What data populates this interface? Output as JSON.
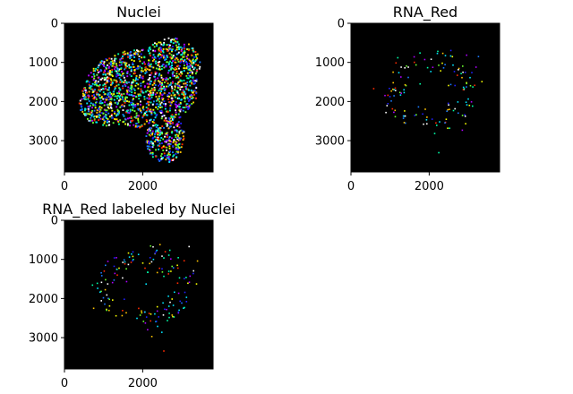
{
  "chart_data": [
    {
      "type": "image",
      "title": "Nuclei",
      "xlabel": "",
      "ylabel": "",
      "xlim": [
        0,
        3800
      ],
      "ylim": [
        3800,
        0
      ],
      "xticks": [
        0,
        2000
      ],
      "yticks": [
        0,
        1000,
        2000,
        3000
      ],
      "xtick_labels": [
        "0",
        "2000"
      ],
      "ytick_labels": [
        "0",
        "1000",
        "2000",
        "3000"
      ],
      "background": "#000000",
      "content": "dense multicolor labeled nuclei forming a tissue section",
      "density": 0.78,
      "colormap": [
        "#ff2a00",
        "#ffc400",
        "#f7ff00",
        "#6bff2e",
        "#00ffa8",
        "#00e5ff",
        "#1a7bff",
        "#2020ff",
        "#b000ff",
        "#ffffff"
      ]
    },
    {
      "type": "image",
      "title": "RNA_Red",
      "xlabel": "",
      "ylabel": "",
      "xlim": [
        0,
        3800
      ],
      "ylim": [
        3800,
        0
      ],
      "xticks": [
        0,
        2000
      ],
      "yticks": [
        0,
        1000,
        2000,
        3000
      ],
      "xtick_labels": [
        "0",
        "2000"
      ],
      "ytick_labels": [
        "0",
        "1000",
        "2000",
        "3000"
      ],
      "background": "#000000",
      "content": "sparse multicolor labeled RNA spots concentrated near tissue rim",
      "density": 0.12,
      "colormap": [
        "#ff2a00",
        "#ffc400",
        "#f7ff00",
        "#6bff2e",
        "#00ffa8",
        "#00e5ff",
        "#1a7bff",
        "#2020ff",
        "#b000ff",
        "#ffffff"
      ]
    },
    {
      "type": "image",
      "title": "RNA_Red labeled by Nuclei",
      "xlabel": "",
      "ylabel": "",
      "xlim": [
        0,
        3800
      ],
      "ylim": [
        3800,
        0
      ],
      "xticks": [
        0,
        2000
      ],
      "yticks": [
        0,
        1000,
        2000,
        3000
      ],
      "xtick_labels": [
        "0",
        "2000"
      ],
      "ytick_labels": [
        "0",
        "1000",
        "2000",
        "3000"
      ],
      "background": "#000000",
      "content": "sparse multicolor RNA spots colored by parent nucleus label",
      "density": 0.12,
      "colormap": [
        "#ff2a00",
        "#ffc400",
        "#f7ff00",
        "#6bff2e",
        "#00ffa8",
        "#00e5ff",
        "#1a7bff",
        "#2020ff",
        "#b000ff",
        "#ffffff"
      ]
    }
  ]
}
